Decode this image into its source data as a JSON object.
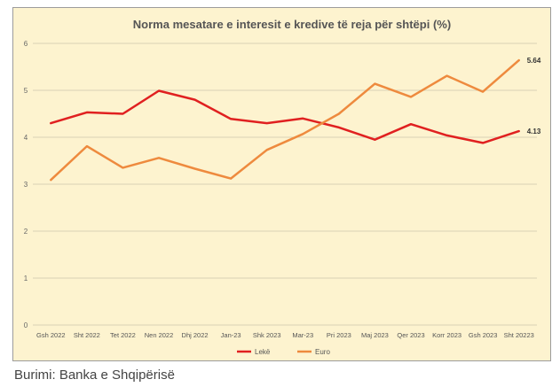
{
  "chart_data": {
    "type": "line",
    "title": "Norma mesatare e interesit e kredive të reja për shtëpi (%)",
    "categories": [
      "Gsh 2022",
      "Sht 2022",
      "Tet 2022",
      "Nen 2022",
      "Dhj 2022",
      "Jan-23",
      "Shk 2023",
      "Mar-23",
      "Pri 2023",
      "Maj 2023",
      "Qer 2023",
      "Korr 2023",
      "Gsh 2023",
      "Sht 20223"
    ],
    "series": [
      {
        "name": "Lekë",
        "color": "#e02020",
        "values": [
          4.3,
          4.53,
          4.5,
          4.99,
          4.8,
          4.39,
          4.3,
          4.4,
          4.21,
          3.95,
          4.28,
          4.04,
          3.88,
          4.13
        ],
        "end_label": "4.13"
      },
      {
        "name": "Euro",
        "color": "#ee8a3e",
        "values": [
          3.09,
          3.81,
          3.35,
          3.56,
          3.33,
          3.12,
          3.73,
          4.07,
          4.5,
          5.14,
          4.86,
          5.31,
          4.97,
          5.64
        ],
        "end_label": "5.64"
      }
    ],
    "yticks": [
      0,
      1,
      2,
      3,
      4,
      5,
      6
    ],
    "ylim": [
      0,
      6
    ],
    "grid": true,
    "legend_position": "bottom"
  },
  "source_note": "Burimi: Banka e Shqipërisë"
}
